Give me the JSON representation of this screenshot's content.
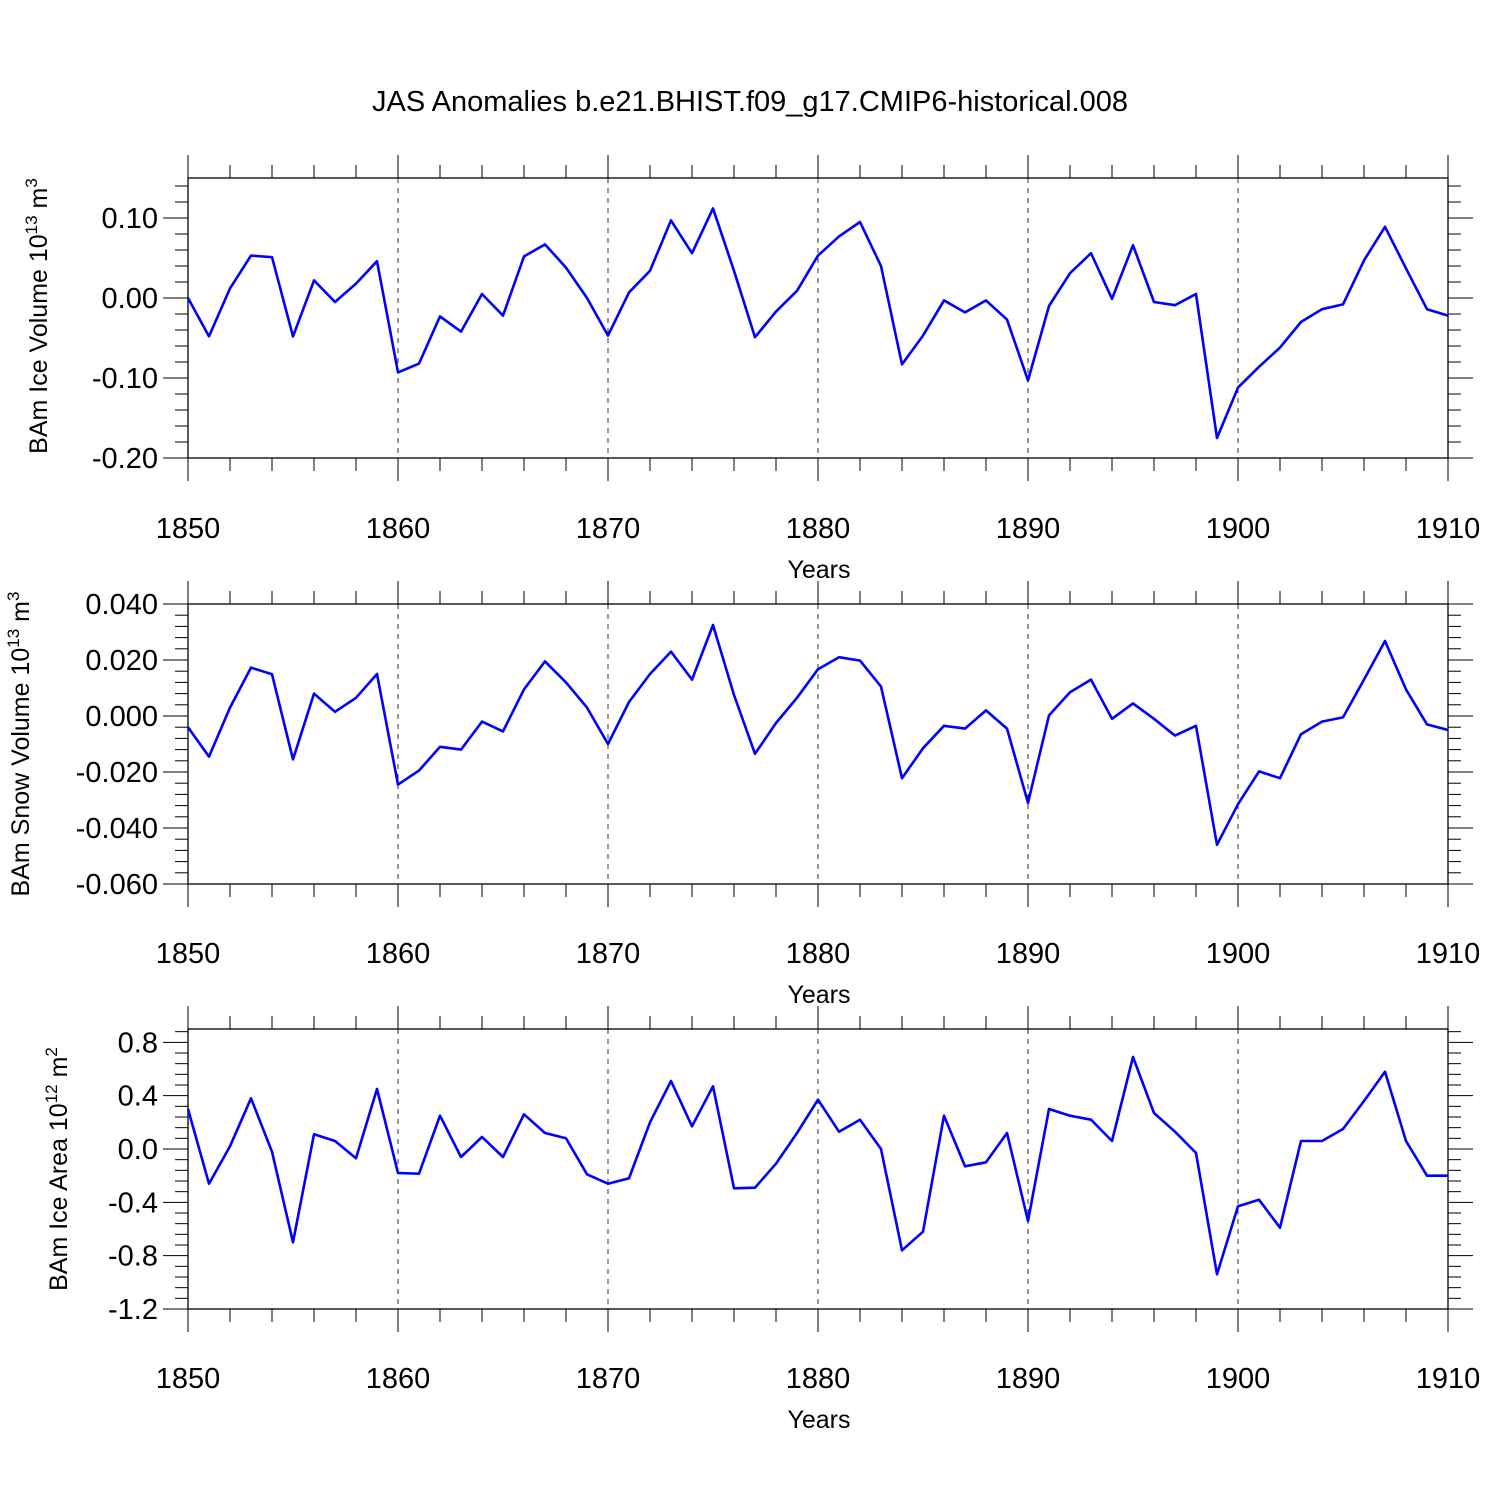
{
  "title": "JAS Anomalies b.e21.BHIST.f09_g17.CMIP6-historical.008",
  "chart_data": [
    {
      "type": "line",
      "title": "",
      "xlabel": "Years",
      "ylabel": "BAm Ice Volume 10",
      "ylabel_sup": "13",
      "ylabel_unit": "m",
      "ylabel_unit_sup": "3",
      "xlim": [
        1850,
        1910
      ],
      "ylim": [
        -0.2,
        0.15
      ],
      "x_ticks": [
        1850,
        1860,
        1870,
        1880,
        1890,
        1900,
        1910
      ],
      "y_ticks": [
        -0.2,
        -0.1,
        0.0,
        0.1
      ],
      "y_tick_labels": [
        "-0.20",
        "-0.10",
        "0.00",
        "0.10"
      ],
      "line_color": "#0000ff",
      "x": [
        1850,
        1851,
        1852,
        1853,
        1854,
        1855,
        1856,
        1857,
        1858,
        1859,
        1860,
        1861,
        1862,
        1863,
        1864,
        1865,
        1866,
        1867,
        1868,
        1869,
        1870,
        1871,
        1872,
        1873,
        1874,
        1875,
        1876,
        1877,
        1878,
        1879,
        1880,
        1881,
        1882,
        1883,
        1884,
        1885,
        1886,
        1887,
        1888,
        1889,
        1890,
        1891,
        1892,
        1893,
        1894,
        1895,
        1896,
        1897,
        1898,
        1899,
        1900,
        1901,
        1902,
        1903,
        1904,
        1905,
        1906,
        1907,
        1908,
        1909,
        1910
      ],
      "values": [
        0.0,
        -0.048,
        0.012,
        0.053,
        0.051,
        -0.048,
        0.022,
        -0.005,
        0.018,
        0.046,
        -0.093,
        -0.082,
        -0.023,
        -0.042,
        0.005,
        -0.022,
        0.052,
        0.067,
        0.038,
        0.0,
        -0.047,
        0.007,
        0.034,
        0.097,
        0.056,
        0.112,
        0.034,
        -0.049,
        -0.017,
        0.009,
        0.053,
        0.077,
        0.095,
        0.04,
        -0.083,
        -0.047,
        -0.003,
        -0.018,
        -0.003,
        -0.027,
        -0.103,
        -0.01,
        0.031,
        0.056,
        -0.001,
        0.066,
        -0.005,
        -0.009,
        0.005,
        -0.175,
        -0.112,
        -0.086,
        -0.062,
        -0.03,
        -0.014,
        -0.008,
        0.047,
        0.089,
        0.037,
        -0.014,
        -0.022
      ]
    },
    {
      "type": "line",
      "title": "",
      "xlabel": "Years",
      "ylabel": "BAm Snow Volume 10",
      "ylabel_sup": "13",
      "ylabel_unit": "m",
      "ylabel_unit_sup": "3",
      "xlim": [
        1850,
        1910
      ],
      "ylim": [
        -0.06,
        0.04
      ],
      "x_ticks": [
        1850,
        1860,
        1870,
        1880,
        1890,
        1900,
        1910
      ],
      "y_ticks": [
        -0.06,
        -0.04,
        -0.02,
        0.0,
        0.02,
        0.04
      ],
      "y_tick_labels": [
        "-0.060",
        "-0.040",
        "-0.020",
        "0.000",
        "0.020",
        "0.040"
      ],
      "line_color": "#0000ff",
      "x": [
        1850,
        1851,
        1852,
        1853,
        1854,
        1855,
        1856,
        1857,
        1858,
        1859,
        1860,
        1861,
        1862,
        1863,
        1864,
        1865,
        1866,
        1867,
        1868,
        1869,
        1870,
        1871,
        1872,
        1873,
        1874,
        1875,
        1876,
        1877,
        1878,
        1879,
        1880,
        1881,
        1882,
        1883,
        1884,
        1885,
        1886,
        1887,
        1888,
        1889,
        1890,
        1891,
        1892,
        1893,
        1894,
        1895,
        1896,
        1897,
        1898,
        1899,
        1900,
        1901,
        1902,
        1903,
        1904,
        1905,
        1906,
        1907,
        1908,
        1909,
        1910
      ],
      "values": [
        -0.004,
        -0.0145,
        0.003,
        0.0173,
        0.0149,
        -0.0155,
        0.008,
        0.0015,
        0.0065,
        0.015,
        -0.0245,
        -0.0195,
        -0.011,
        -0.012,
        -0.002,
        -0.0055,
        0.0095,
        0.0195,
        0.012,
        0.003,
        -0.01,
        0.005,
        0.015,
        0.023,
        0.013,
        0.0325,
        0.0075,
        -0.0135,
        -0.0025,
        0.0065,
        0.0167,
        0.021,
        0.0198,
        0.0105,
        -0.0222,
        -0.0115,
        -0.0035,
        -0.0045,
        0.002,
        -0.0045,
        -0.031,
        0.0002,
        0.0085,
        0.013,
        -0.001,
        0.0045,
        -0.001,
        -0.007,
        -0.0035,
        -0.046,
        -0.0315,
        -0.0198,
        -0.0222,
        -0.0065,
        -0.002,
        -0.0005,
        0.013,
        0.0268,
        0.0095,
        -0.003,
        -0.005
      ]
    },
    {
      "type": "line",
      "title": "",
      "xlabel": "Years",
      "ylabel": "BAm Ice Area 10",
      "ylabel_sup": "12",
      "ylabel_unit": "m",
      "ylabel_unit_sup": "2",
      "xlim": [
        1850,
        1910
      ],
      "ylim": [
        -1.2,
        0.9
      ],
      "x_ticks": [
        1850,
        1860,
        1870,
        1880,
        1890,
        1900,
        1910
      ],
      "y_ticks": [
        -1.2,
        -0.8,
        -0.4,
        0.0,
        0.4,
        0.8
      ],
      "y_tick_labels": [
        "-1.2",
        "-0.8",
        "-0.4",
        "0.0",
        "0.4",
        "0.8"
      ],
      "line_color": "#0000ff",
      "x": [
        1850,
        1851,
        1852,
        1853,
        1854,
        1855,
        1856,
        1857,
        1858,
        1859,
        1860,
        1861,
        1862,
        1863,
        1864,
        1865,
        1866,
        1867,
        1868,
        1869,
        1870,
        1871,
        1872,
        1873,
        1874,
        1875,
        1876,
        1877,
        1878,
        1879,
        1880,
        1881,
        1882,
        1883,
        1884,
        1885,
        1886,
        1887,
        1888,
        1889,
        1890,
        1891,
        1892,
        1893,
        1894,
        1895,
        1896,
        1897,
        1898,
        1899,
        1900,
        1901,
        1902,
        1903,
        1904,
        1905,
        1906,
        1907,
        1908,
        1909,
        1910
      ],
      "values": [
        0.3,
        -0.26,
        0.02,
        0.38,
        -0.02,
        -0.7,
        0.11,
        0.06,
        -0.07,
        0.45,
        -0.18,
        -0.185,
        0.25,
        -0.06,
        0.09,
        -0.06,
        0.26,
        0.12,
        0.08,
        -0.19,
        -0.26,
        -0.22,
        0.2,
        0.51,
        0.17,
        0.47,
        -0.295,
        -0.29,
        -0.11,
        0.12,
        0.37,
        0.13,
        0.22,
        0.0,
        -0.76,
        -0.62,
        0.25,
        -0.13,
        -0.1,
        0.12,
        -0.54,
        0.3,
        0.25,
        0.22,
        0.06,
        0.69,
        0.27,
        0.13,
        -0.03,
        -0.94,
        -0.43,
        -0.38,
        -0.59,
        0.06,
        0.06,
        0.15,
        0.36,
        0.58,
        0.06,
        -0.2,
        -0.2
      ]
    }
  ]
}
